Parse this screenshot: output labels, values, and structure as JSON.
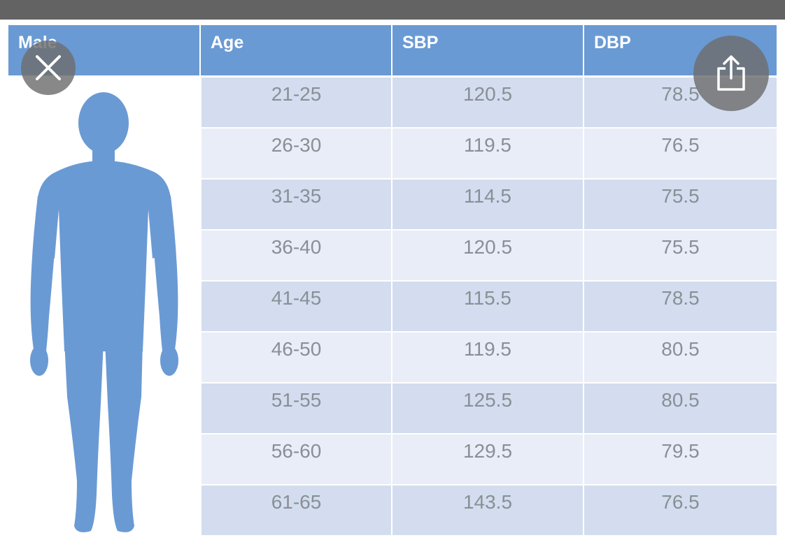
{
  "table": {
    "headers": [
      "Male",
      "Age",
      "SBP",
      "DBP"
    ],
    "rows": [
      {
        "age": "21-25",
        "sbp": "120.5",
        "dbp": "78.5"
      },
      {
        "age": "26-30",
        "sbp": "119.5",
        "dbp": "76.5"
      },
      {
        "age": "31-35",
        "sbp": "114.5",
        "dbp": "75.5"
      },
      {
        "age": "36-40",
        "sbp": "120.5",
        "dbp": "75.5"
      },
      {
        "age": "41-45",
        "sbp": "115.5",
        "dbp": "78.5"
      },
      {
        "age": "46-50",
        "sbp": "119.5",
        "dbp": "80.5"
      },
      {
        "age": "51-55",
        "sbp": "125.5",
        "dbp": "80.5"
      },
      {
        "age": "56-60",
        "sbp": "129.5",
        "dbp": "79.5"
      },
      {
        "age": "61-65",
        "sbp": "143.5",
        "dbp": "76.5"
      }
    ]
  },
  "icons": {
    "close": "close-icon",
    "share": "share-icon",
    "figure": "male-silhouette-icon"
  },
  "colors": {
    "header": "#6a9ad4",
    "figure": "#6a9ad4",
    "row_dark": "#d3ddef",
    "row_light": "#e9edf7",
    "cell_text": "#8a8f96",
    "overlay_button": "#6e6e6e"
  }
}
